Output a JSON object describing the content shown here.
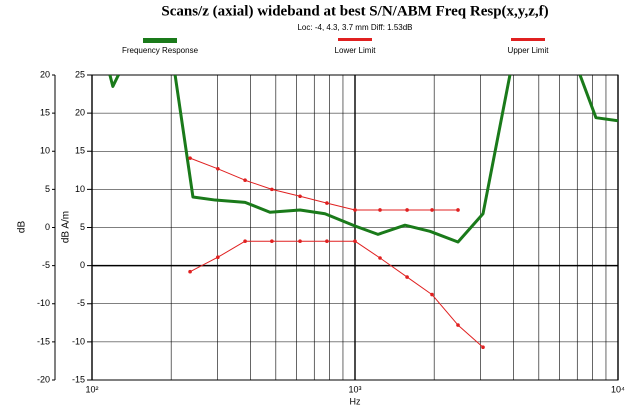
{
  "chart_data": {
    "type": "line",
    "title": "Scans/z (axial) wideband at best S/N/ABM Freq Resp(x,y,z,f)",
    "subtitle": "Loc: -4, 4.3, 3.7 mm Diff: 1.53dB",
    "x_label": "Hz",
    "y_label": "dB A/m",
    "y2_label": "dB",
    "xscale": "log",
    "xlim": [
      100,
      10000
    ],
    "xticks": [
      {
        "value": 100,
        "label": "10²"
      },
      {
        "value": 1000,
        "label": "10³"
      },
      {
        "value": 10000,
        "label": "10⁴"
      }
    ],
    "xminor": [
      200,
      300,
      400,
      500,
      600,
      700,
      800,
      900,
      2000,
      3000,
      4000,
      5000,
      6000,
      7000,
      8000,
      9000
    ],
    "ylim": [
      -15,
      25
    ],
    "yticks": [
      25,
      20,
      15,
      10,
      5,
      0,
      -5,
      -10,
      -15
    ],
    "y2lim": [
      -20,
      20
    ],
    "y2ticks": [
      20,
      15,
      10,
      5,
      0,
      -5,
      -10,
      -15,
      -20
    ],
    "grid": true,
    "series": [
      {
        "name": "Frequency Response",
        "color": "#1a7a1a",
        "x": [
          117,
          120,
          126,
          null,
          207,
          242,
          294,
          382,
          475,
          618,
          769,
          1000,
          1223,
          1549,
          1928,
          2464,
          3067,
          3882,
          null,
          7170,
          8244,
          10000
        ],
        "values": [
          25,
          23.5,
          25,
          null,
          25,
          9.0,
          8.6,
          8.3,
          7.0,
          7.3,
          6.8,
          5.2,
          4.1,
          5.3,
          4.5,
          3.1,
          6.8,
          25,
          null,
          25,
          19.4,
          19.0
        ]
      },
      {
        "name": "Lower Limit",
        "color": "#e02020",
        "x": [
          236,
          301,
          382,
          483,
          618,
          782,
          1000,
          1245,
          1578,
          1963,
          2464,
          3067
        ],
        "values": [
          -0.8,
          1.1,
          3.2,
          3.2,
          3.2,
          3.2,
          3.2,
          1.0,
          -1.5,
          -3.8,
          -7.8,
          -10.7
        ]
      },
      {
        "name": "Upper Limit",
        "color": "#e02020",
        "x": [
          236,
          301,
          382,
          483,
          618,
          782,
          1000,
          1245,
          1578,
          1963,
          2464
        ],
        "values": [
          14.1,
          12.7,
          11.2,
          10.0,
          9.1,
          8.2,
          7.3,
          7.3,
          7.3,
          7.3,
          7.3
        ]
      }
    ]
  }
}
